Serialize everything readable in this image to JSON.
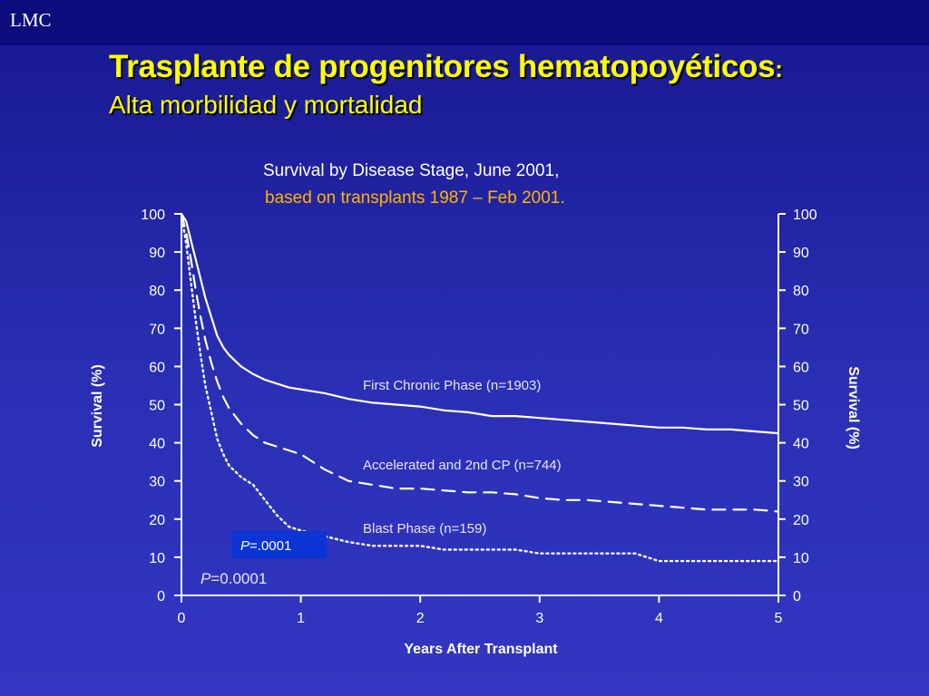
{
  "header": {
    "corner_label": "LMC",
    "title": "Trasplante de progenitores hematopoyéticos",
    "title_suffix": ":",
    "subtitle": "Alta morbilidad y mortalidad"
  },
  "caption": {
    "line1": "Survival by Disease Stage, June 2001,",
    "line2": "based on transplants 1987 – Feb 2001."
  },
  "colors": {
    "background": "#2a2fb4",
    "title": "#ffff00",
    "caption_highlight": "#ffb400",
    "pbox": "#0a34d4",
    "curves": "#ffffff"
  },
  "chart_data": {
    "type": "line",
    "xlabel": "Years After Transplant",
    "ylabel": "Survival (%)",
    "ylabel_right": "Survival (%)",
    "xlim": [
      0,
      5
    ],
    "ylim": [
      0,
      100
    ],
    "x_ticks": [
      "0",
      "1",
      "2",
      "3",
      "4",
      "5"
    ],
    "y_ticks": [
      "0",
      "10",
      "20",
      "30",
      "40",
      "50",
      "60",
      "70",
      "80",
      "90",
      "100"
    ],
    "grid": false,
    "annotations": {
      "pbox": "=.0001",
      "pbox_p": "P",
      "pvalue": "=0.0001",
      "pvalue_p": "P"
    },
    "series": [
      {
        "name": "First Chronic Phase (n=1903)",
        "style": "solid",
        "x": [
          0,
          0.04,
          0.08,
          0.12,
          0.16,
          0.2,
          0.25,
          0.3,
          0.35,
          0.4,
          0.5,
          0.6,
          0.7,
          0.8,
          0.9,
          1.0,
          1.2,
          1.4,
          1.6,
          1.8,
          2.0,
          2.2,
          2.4,
          2.6,
          2.8,
          3.0,
          3.2,
          3.4,
          3.6,
          3.8,
          4.0,
          4.2,
          4.4,
          4.6,
          4.8,
          5.0
        ],
        "values": [
          100,
          98,
          93,
          88,
          83,
          78,
          73,
          68,
          65,
          63,
          60,
          58,
          56.5,
          55.5,
          54.5,
          54,
          53,
          51.5,
          50.5,
          50,
          49.5,
          48.5,
          48,
          47,
          47,
          46.5,
          46,
          45.5,
          45,
          44.5,
          44,
          44,
          43.5,
          43.5,
          43,
          42.5
        ]
      },
      {
        "name": "Accelerated and 2nd CP (n=744)",
        "style": "dashed",
        "x": [
          0,
          0.04,
          0.08,
          0.12,
          0.16,
          0.2,
          0.25,
          0.3,
          0.35,
          0.4,
          0.5,
          0.6,
          0.7,
          0.8,
          0.9,
          1.0,
          1.2,
          1.4,
          1.6,
          1.8,
          2.0,
          2.2,
          2.4,
          2.6,
          2.8,
          3.0,
          3.2,
          3.4,
          3.6,
          3.8,
          4.0,
          4.2,
          4.4,
          4.6,
          4.8,
          5.0
        ],
        "values": [
          100,
          95,
          88,
          80,
          73,
          67,
          61,
          56,
          52,
          49,
          45,
          42,
          40,
          39,
          38,
          37,
          33,
          30,
          29,
          28,
          28,
          27.5,
          27,
          27,
          26.5,
          25.5,
          25,
          25,
          24.5,
          24,
          23.5,
          23,
          22.5,
          22.5,
          22.5,
          22
        ]
      },
      {
        "name": "Blast Phase (n=159)",
        "style": "dotted",
        "x": [
          0,
          0.04,
          0.08,
          0.12,
          0.16,
          0.2,
          0.25,
          0.3,
          0.35,
          0.4,
          0.5,
          0.6,
          0.7,
          0.8,
          0.9,
          1.0,
          1.2,
          1.4,
          1.6,
          1.8,
          2.0,
          2.2,
          2.4,
          2.6,
          2.8,
          3.0,
          3.2,
          3.4,
          3.6,
          3.8,
          4.0,
          4.2,
          4.4,
          4.6,
          4.8,
          5.0
        ],
        "values": [
          100,
          92,
          82,
          72,
          63,
          55,
          48,
          41,
          37,
          34,
          31,
          29,
          25,
          21,
          18,
          17,
          15.5,
          14,
          13,
          13,
          13,
          12,
          12,
          12,
          12,
          11,
          11,
          11,
          11,
          11,
          9,
          9,
          9,
          9,
          9,
          9
        ]
      }
    ]
  }
}
